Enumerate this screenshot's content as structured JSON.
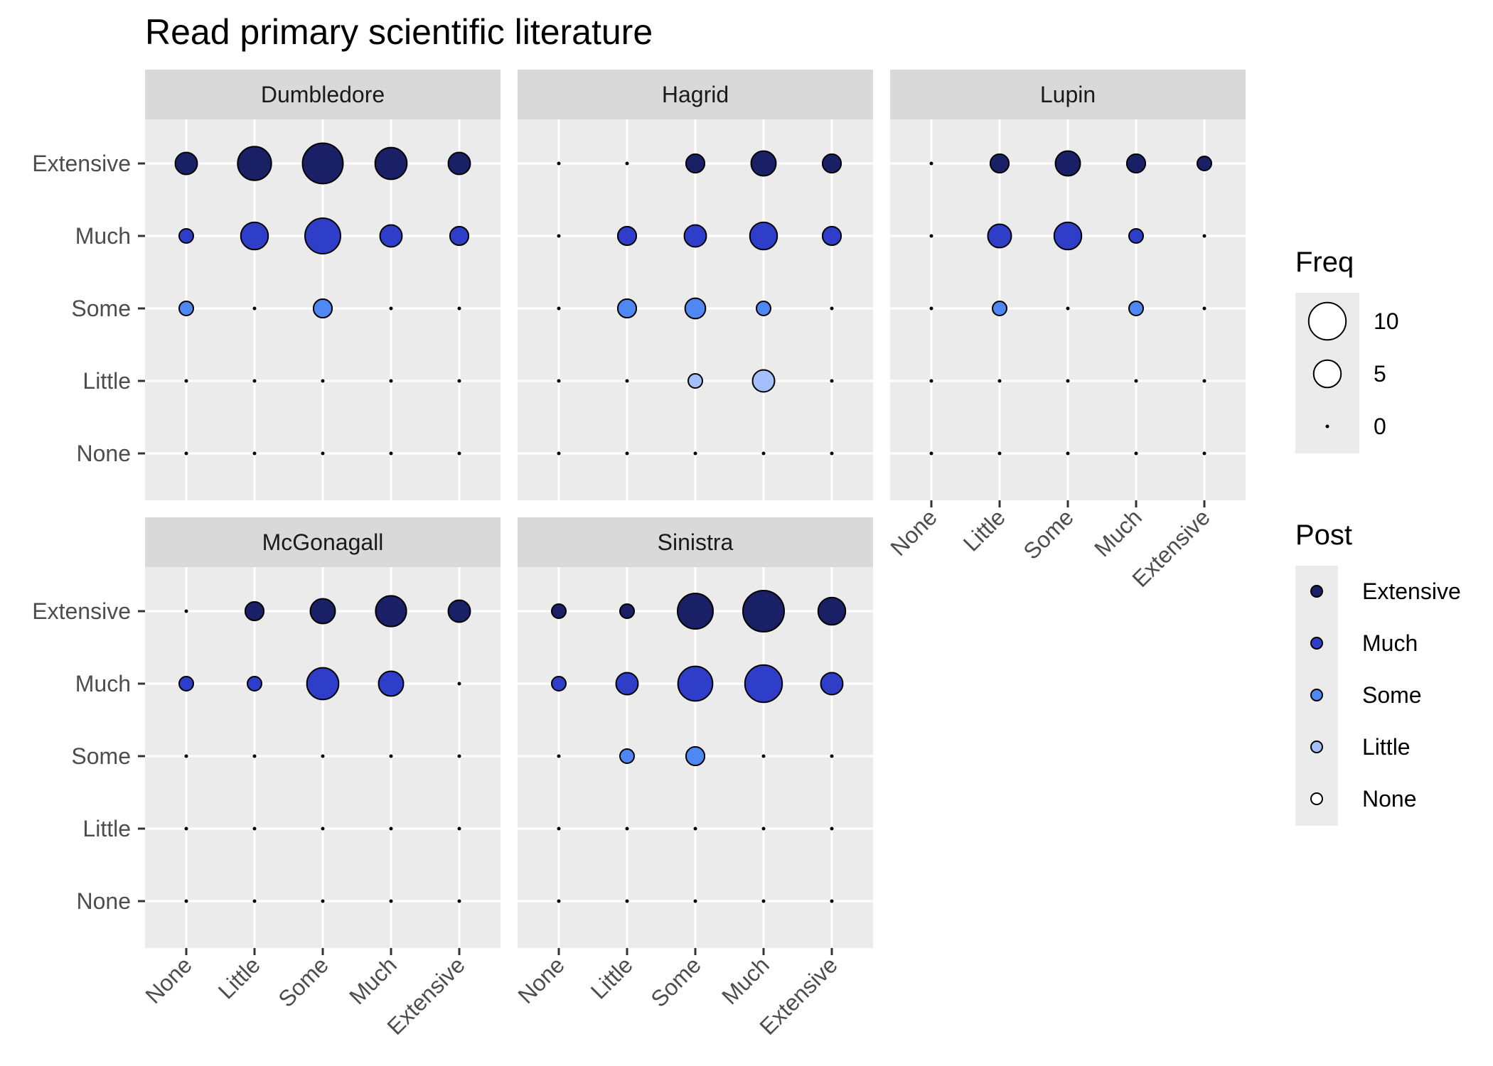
{
  "chart_data": {
    "type": "scatter",
    "title": "Read primary scientific literature",
    "x_categories": [
      "None",
      "Little",
      "Some",
      "Much",
      "Extensive"
    ],
    "y_categories": [
      "None",
      "Little",
      "Some",
      "Much",
      "Extensive"
    ],
    "grid": true,
    "legend_position": "right",
    "panels": [
      {
        "name": "Dumbledore",
        "points": [
          {
            "x": "None",
            "y": "Extensive",
            "freq": 3
          },
          {
            "x": "Little",
            "y": "Extensive",
            "freq": 8
          },
          {
            "x": "Some",
            "y": "Extensive",
            "freq": 12
          },
          {
            "x": "Much",
            "y": "Extensive",
            "freq": 7
          },
          {
            "x": "Extensive",
            "y": "Extensive",
            "freq": 3
          },
          {
            "x": "None",
            "y": "Much",
            "freq": 1
          },
          {
            "x": "Little",
            "y": "Much",
            "freq": 5
          },
          {
            "x": "Some",
            "y": "Much",
            "freq": 9
          },
          {
            "x": "Much",
            "y": "Much",
            "freq": 3
          },
          {
            "x": "Extensive",
            "y": "Much",
            "freq": 2
          },
          {
            "x": "None",
            "y": "Some",
            "freq": 1
          },
          {
            "x": "Some",
            "y": "Some",
            "freq": 2
          }
        ]
      },
      {
        "name": "Hagrid",
        "points": [
          {
            "x": "Some",
            "y": "Extensive",
            "freq": 2
          },
          {
            "x": "Much",
            "y": "Extensive",
            "freq": 4
          },
          {
            "x": "Extensive",
            "y": "Extensive",
            "freq": 2
          },
          {
            "x": "Little",
            "y": "Much",
            "freq": 2
          },
          {
            "x": "Some",
            "y": "Much",
            "freq": 3
          },
          {
            "x": "Much",
            "y": "Much",
            "freq": 5
          },
          {
            "x": "Extensive",
            "y": "Much",
            "freq": 2
          },
          {
            "x": "Little",
            "y": "Some",
            "freq": 2
          },
          {
            "x": "Some",
            "y": "Some",
            "freq": 2.5
          },
          {
            "x": "Much",
            "y": "Some",
            "freq": 1
          },
          {
            "x": "Some",
            "y": "Little",
            "freq": 1
          },
          {
            "x": "Much",
            "y": "Little",
            "freq": 3
          }
        ]
      },
      {
        "name": "Lupin",
        "points": [
          {
            "x": "Little",
            "y": "Extensive",
            "freq": 2
          },
          {
            "x": "Some",
            "y": "Extensive",
            "freq": 4
          },
          {
            "x": "Much",
            "y": "Extensive",
            "freq": 2
          },
          {
            "x": "Extensive",
            "y": "Extensive",
            "freq": 1
          },
          {
            "x": "Little",
            "y": "Much",
            "freq": 3.5
          },
          {
            "x": "Some",
            "y": "Much",
            "freq": 5
          },
          {
            "x": "Much",
            "y": "Much",
            "freq": 1
          },
          {
            "x": "Little",
            "y": "Some",
            "freq": 1
          },
          {
            "x": "Much",
            "y": "Some",
            "freq": 1
          }
        ]
      },
      {
        "name": "McGonagall",
        "points": [
          {
            "x": "Little",
            "y": "Extensive",
            "freq": 2
          },
          {
            "x": "Some",
            "y": "Extensive",
            "freq": 4
          },
          {
            "x": "Much",
            "y": "Extensive",
            "freq": 6.5
          },
          {
            "x": "Extensive",
            "y": "Extensive",
            "freq": 3
          },
          {
            "x": "None",
            "y": "Much",
            "freq": 1
          },
          {
            "x": "Little",
            "y": "Much",
            "freq": 1
          },
          {
            "x": "Some",
            "y": "Much",
            "freq": 7
          },
          {
            "x": "Much",
            "y": "Much",
            "freq": 4
          }
        ]
      },
      {
        "name": "Sinistra",
        "points": [
          {
            "x": "None",
            "y": "Extensive",
            "freq": 1
          },
          {
            "x": "Little",
            "y": "Extensive",
            "freq": 1
          },
          {
            "x": "Some",
            "y": "Extensive",
            "freq": 9
          },
          {
            "x": "Much",
            "y": "Extensive",
            "freq": 12.5
          },
          {
            "x": "Extensive",
            "y": "Extensive",
            "freq": 5
          },
          {
            "x": "None",
            "y": "Much",
            "freq": 1
          },
          {
            "x": "Little",
            "y": "Much",
            "freq": 3
          },
          {
            "x": "Some",
            "y": "Much",
            "freq": 8.5
          },
          {
            "x": "Much",
            "y": "Much",
            "freq": 10
          },
          {
            "x": "Extensive",
            "y": "Much",
            "freq": 3
          },
          {
            "x": "Little",
            "y": "Some",
            "freq": 1
          },
          {
            "x": "Some",
            "y": "Some",
            "freq": 2
          }
        ]
      }
    ],
    "legend_size": {
      "title": "Freq",
      "breaks": [
        10,
        5,
        0
      ]
    },
    "legend_color": {
      "title": "Post",
      "entries": [
        {
          "label": "Extensive",
          "color": "#1a2066"
        },
        {
          "label": "Much",
          "color": "#2e3ec8"
        },
        {
          "label": "Some",
          "color": "#4f88f2"
        },
        {
          "label": "Little",
          "color": "#a3c0fa"
        },
        {
          "label": "None",
          "color": "#ffffff"
        }
      ]
    }
  }
}
